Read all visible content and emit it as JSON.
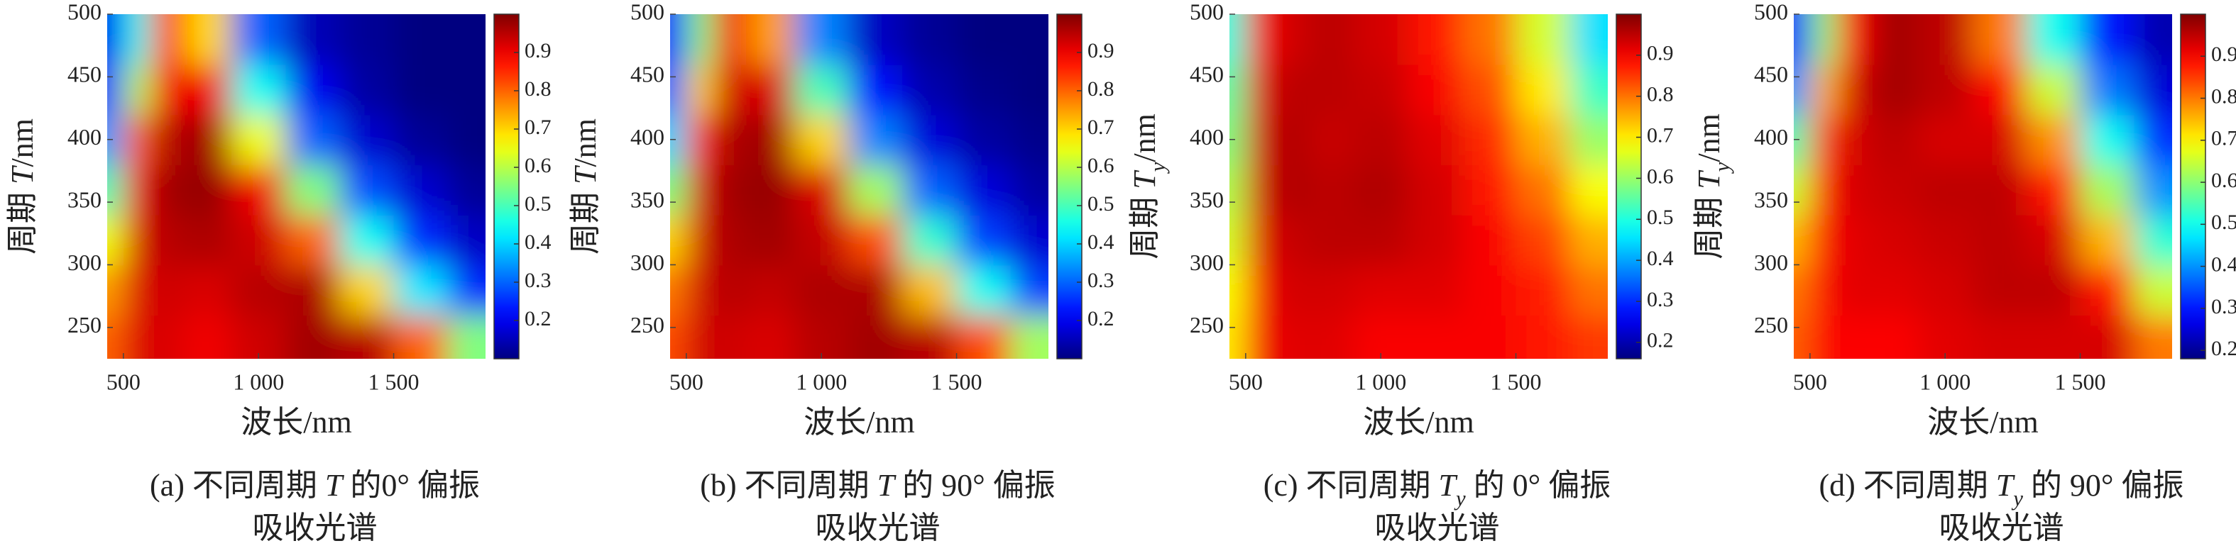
{
  "chart_data": [
    {
      "type": "heatmap",
      "colormap": "jet",
      "xlabel": "波长/nm",
      "ylabel": [
        {
          "text": "周期 "
        },
        {
          "text": "T",
          "italic": true
        },
        {
          "text": "/nm"
        }
      ],
      "caption": [
        [
          {
            "text": "(a) 不同周期 "
          },
          {
            "text": "T",
            "italic": true
          },
          {
            "text": " 的0° 偏振"
          }
        ],
        [
          {
            "text": "吸收光谱"
          }
        ]
      ],
      "x": [
        450,
        550,
        650,
        800,
        1000,
        1200,
        1400,
        1600,
        1800
      ],
      "y": [
        240,
        280,
        320,
        360,
        400,
        440,
        480
      ],
      "values": [
        [
          0.8,
          0.92,
          0.92,
          0.9,
          0.93,
          0.97,
          0.95,
          0.8,
          0.55
        ],
        [
          0.75,
          0.92,
          0.93,
          0.92,
          0.95,
          0.96,
          0.7,
          0.42,
          0.25
        ],
        [
          0.65,
          0.92,
          0.95,
          0.96,
          0.93,
          0.8,
          0.45,
          0.25,
          0.16
        ],
        [
          0.5,
          0.9,
          0.97,
          0.98,
          0.9,
          0.55,
          0.28,
          0.17,
          0.12
        ],
        [
          0.35,
          0.8,
          0.95,
          0.97,
          0.65,
          0.3,
          0.17,
          0.12,
          0.1
        ],
        [
          0.25,
          0.6,
          0.9,
          0.9,
          0.45,
          0.2,
          0.13,
          0.1,
          0.1
        ],
        [
          0.2,
          0.45,
          0.85,
          0.7,
          0.3,
          0.15,
          0.12,
          0.1,
          0.1
        ]
      ],
      "xlim": [
        440,
        1840
      ],
      "ylim": [
        225,
        500
      ],
      "xticks": [
        500,
        {
          "value": 1000,
          "label": "1 000"
        },
        {
          "value": 1500,
          "label": "1 500"
        }
      ],
      "yticks": [
        250,
        300,
        350,
        400,
        450,
        500
      ],
      "clim": [
        0.1,
        1.0
      ],
      "cticks": [
        0.2,
        0.3,
        0.4,
        0.5,
        0.6,
        0.7,
        0.8,
        0.9
      ]
    },
    {
      "type": "heatmap",
      "colormap": "jet",
      "xlabel": "波长/nm",
      "ylabel": [
        {
          "text": "周期 "
        },
        {
          "text": "T",
          "italic": true
        },
        {
          "text": "/nm"
        }
      ],
      "caption": [
        [
          {
            "text": "(b) 不同周期 "
          },
          {
            "text": "T",
            "italic": true
          },
          {
            "text": " 的 90° 偏振"
          }
        ],
        [
          {
            "text": "吸收光谱"
          }
        ]
      ],
      "x": [
        450,
        550,
        650,
        800,
        1000,
        1200,
        1400,
        1600,
        1800
      ],
      "y": [
        240,
        280,
        320,
        360,
        400,
        440,
        480
      ],
      "values": [
        [
          0.82,
          0.93,
          0.93,
          0.92,
          0.95,
          0.97,
          0.95,
          0.82,
          0.58
        ],
        [
          0.78,
          0.93,
          0.95,
          0.94,
          0.96,
          0.96,
          0.72,
          0.45,
          0.27
        ],
        [
          0.7,
          0.93,
          0.96,
          0.97,
          0.94,
          0.82,
          0.48,
          0.27,
          0.17
        ],
        [
          0.55,
          0.92,
          0.97,
          0.98,
          0.92,
          0.58,
          0.3,
          0.18,
          0.13
        ],
        [
          0.4,
          0.85,
          0.96,
          0.97,
          0.7,
          0.33,
          0.18,
          0.13,
          0.11
        ],
        [
          0.3,
          0.7,
          0.93,
          0.92,
          0.5,
          0.22,
          0.14,
          0.11,
          0.1
        ],
        [
          0.22,
          0.55,
          0.9,
          0.75,
          0.33,
          0.16,
          0.12,
          0.1,
          0.1
        ]
      ],
      "xlim": [
        440,
        1840
      ],
      "ylim": [
        225,
        500
      ],
      "xticks": [
        500,
        {
          "value": 1000,
          "label": "1 000"
        },
        {
          "value": 1500,
          "label": "1 500"
        }
      ],
      "yticks": [
        250,
        300,
        350,
        400,
        450,
        500
      ],
      "clim": [
        0.1,
        1.0
      ],
      "cticks": [
        0.2,
        0.3,
        0.4,
        0.5,
        0.6,
        0.7,
        0.8,
        0.9
      ]
    },
    {
      "type": "heatmap",
      "colormap": "jet",
      "xlabel": "波长/nm",
      "ylabel": [
        {
          "text": "周期 "
        },
        {
          "text": "T",
          "italic": true
        },
        {
          "text": "y",
          "italic": true,
          "sub": true
        },
        {
          "text": "/nm"
        }
      ],
      "caption": [
        [
          {
            "text": "(c) 不同周期 "
          },
          {
            "text": "T",
            "italic": true
          },
          {
            "text": "y",
            "italic": true,
            "sub": true
          },
          {
            "text": " 的 0° 偏振"
          }
        ],
        [
          {
            "text": "吸收光谱"
          }
        ]
      ],
      "x": [
        450,
        550,
        650,
        800,
        1000,
        1200,
        1400,
        1600,
        1800
      ],
      "y": [
        240,
        280,
        320,
        360,
        400,
        440,
        480
      ],
      "values": [
        [
          0.7,
          0.9,
          0.92,
          0.92,
          0.9,
          0.9,
          0.9,
          0.88,
          0.85
        ],
        [
          0.68,
          0.9,
          0.93,
          0.93,
          0.92,
          0.92,
          0.9,
          0.87,
          0.8
        ],
        [
          0.65,
          0.92,
          0.94,
          0.95,
          0.95,
          0.93,
          0.9,
          0.84,
          0.75
        ],
        [
          0.62,
          0.93,
          0.96,
          0.95,
          0.96,
          0.93,
          0.88,
          0.8,
          0.68
        ],
        [
          0.58,
          0.93,
          0.96,
          0.94,
          0.95,
          0.92,
          0.86,
          0.75,
          0.6
        ],
        [
          0.55,
          0.92,
          0.95,
          0.95,
          0.94,
          0.9,
          0.83,
          0.7,
          0.52
        ],
        [
          0.5,
          0.9,
          0.93,
          0.95,
          0.93,
          0.88,
          0.8,
          0.65,
          0.45
        ]
      ],
      "xlim": [
        440,
        1840
      ],
      "ylim": [
        225,
        500
      ],
      "xticks": [
        500,
        {
          "value": 1000,
          "label": "1 000"
        },
        {
          "value": 1500,
          "label": "1 500"
        }
      ],
      "yticks": [
        250,
        300,
        350,
        400,
        450,
        500
      ],
      "clim": [
        0.16,
        1.0
      ],
      "cticks": [
        0.2,
        0.3,
        0.4,
        0.5,
        0.6,
        0.7,
        0.8,
        0.9
      ]
    },
    {
      "type": "heatmap",
      "colormap": "jet",
      "xlabel": "波长/nm",
      "ylabel": [
        {
          "text": "周期 "
        },
        {
          "text": "T",
          "italic": true
        },
        {
          "text": "y",
          "italic": true,
          "sub": true
        },
        {
          "text": "/nm"
        }
      ],
      "caption": [
        [
          {
            "text": "(d) 不同周期 "
          },
          {
            "text": "T",
            "italic": true
          },
          {
            "text": "y",
            "italic": true,
            "sub": true
          },
          {
            "text": " 的 90° 偏振"
          }
        ],
        [
          {
            "text": "吸收光谱"
          }
        ]
      ],
      "x": [
        450,
        550,
        650,
        800,
        1000,
        1200,
        1400,
        1600,
        1800
      ],
      "y": [
        240,
        280,
        320,
        360,
        400,
        440,
        480
      ],
      "values": [
        [
          0.82,
          0.9,
          0.9,
          0.9,
          0.92,
          0.93,
          0.93,
          0.93,
          0.8
        ],
        [
          0.8,
          0.9,
          0.92,
          0.92,
          0.93,
          0.95,
          0.95,
          0.88,
          0.65
        ],
        [
          0.75,
          0.9,
          0.92,
          0.93,
          0.94,
          0.95,
          0.93,
          0.75,
          0.52
        ],
        [
          0.65,
          0.88,
          0.93,
          0.94,
          0.95,
          0.95,
          0.88,
          0.62,
          0.4
        ],
        [
          0.55,
          0.85,
          0.93,
          0.95,
          0.93,
          0.93,
          0.78,
          0.5,
          0.32
        ],
        [
          0.4,
          0.75,
          0.93,
          0.97,
          0.95,
          0.9,
          0.65,
          0.38,
          0.25
        ],
        [
          0.3,
          0.6,
          0.9,
          0.97,
          0.95,
          0.8,
          0.5,
          0.3,
          0.22
        ]
      ],
      "xlim": [
        440,
        1840
      ],
      "ylim": [
        225,
        500
      ],
      "xticks": [
        500,
        {
          "value": 1000,
          "label": "1 000"
        },
        {
          "value": 1500,
          "label": "1 500"
        }
      ],
      "yticks": [
        250,
        300,
        350,
        400,
        450,
        500
      ],
      "clim": [
        0.18,
        1.0
      ],
      "cticks": [
        0.2,
        0.3,
        0.4,
        0.5,
        0.6,
        0.7,
        0.8,
        0.9
      ]
    }
  ]
}
